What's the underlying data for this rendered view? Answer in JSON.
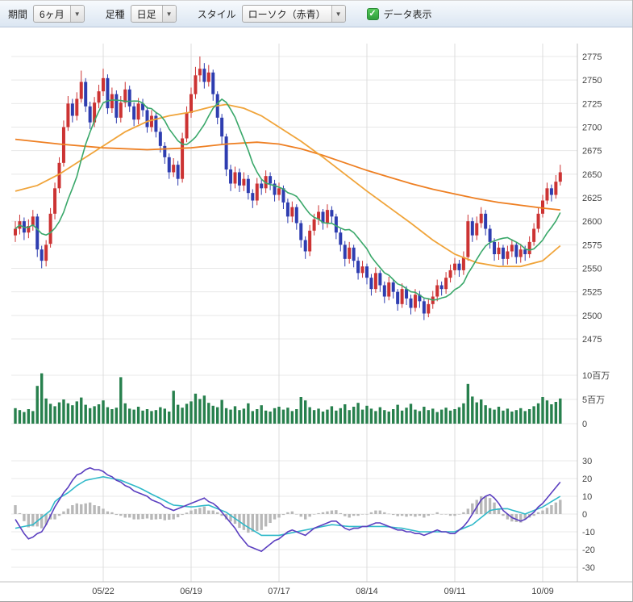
{
  "toolbar": {
    "period_label": "期間",
    "period_value": "6ヶ月",
    "bartype_label": "足種",
    "bartype_value": "日足",
    "style_label": "スタイル",
    "style_value": "ローソク（赤青）",
    "data_display_label": "データ表示",
    "data_display_checked": true
  },
  "icons": {
    "dropdown_arrow": "▼",
    "checkbox_check": "✓"
  },
  "colors": {
    "grid": "#e8e8e8",
    "grid_v": "#dcdcdc",
    "border": "#c0c0c0",
    "axis_text": "#444444",
    "up": "#cc3333",
    "down": "#2e3db0",
    "volume": "#27804d",
    "ma_short": "#3aa86a",
    "ma_mid": "#f0a43a",
    "ma_long": "#ee7f22",
    "osc_fast": "#5b3fc0",
    "osc_slow": "#2fb9c9",
    "hist": "#b8b8b8"
  },
  "chart_data": {
    "type": "candlestick",
    "panels": [
      "price",
      "volume",
      "oscillator"
    ],
    "num_points": 125,
    "x_tick_labels": [
      "05/22",
      "06/19",
      "07/17",
      "08/14",
      "09/11",
      "10/09"
    ],
    "x_tick_indices": [
      20,
      40,
      60,
      80,
      100,
      120
    ],
    "price_panel": {
      "axis_min": 2475,
      "axis_max": 2775,
      "axis_step": 25,
      "candles_ohlc": [
        [
          2585,
          2600,
          2578,
          2592
        ],
        [
          2592,
          2607,
          2586,
          2600
        ],
        [
          2600,
          2604,
          2580,
          2588
        ],
        [
          2588,
          2602,
          2582,
          2595
        ],
        [
          2595,
          2612,
          2590,
          2605
        ],
        [
          2605,
          2608,
          2562,
          2570
        ],
        [
          2570,
          2574,
          2550,
          2558
        ],
        [
          2558,
          2580,
          2552,
          2575
        ],
        [
          2576,
          2614,
          2572,
          2608
        ],
        [
          2608,
          2641,
          2602,
          2635
        ],
        [
          2635,
          2668,
          2630,
          2662
        ],
        [
          2662,
          2707,
          2658,
          2700
        ],
        [
          2700,
          2733,
          2696,
          2725
        ],
        [
          2725,
          2730,
          2705,
          2712
        ],
        [
          2712,
          2737,
          2707,
          2730
        ],
        [
          2730,
          2760,
          2726,
          2748
        ],
        [
          2748,
          2752,
          2716,
          2722
        ],
        [
          2722,
          2727,
          2698,
          2705
        ],
        [
          2705,
          2732,
          2700,
          2726
        ],
        [
          2726,
          2745,
          2720,
          2738
        ],
        [
          2738,
          2762,
          2733,
          2752
        ],
        [
          2752,
          2756,
          2714,
          2720
        ],
        [
          2720,
          2742,
          2715,
          2735
        ],
        [
          2735,
          2739,
          2704,
          2710
        ],
        [
          2710,
          2733,
          2705,
          2726
        ],
        [
          2726,
          2748,
          2721,
          2740
        ],
        [
          2740,
          2744,
          2716,
          2722
        ],
        [
          2722,
          2726,
          2701,
          2708
        ],
        [
          2708,
          2731,
          2703,
          2725
        ],
        [
          2725,
          2730,
          2711,
          2718
        ],
        [
          2718,
          2722,
          2694,
          2700
        ],
        [
          2700,
          2718,
          2695,
          2712
        ],
        [
          2712,
          2716,
          2689,
          2695
        ],
        [
          2695,
          2699,
          2673,
          2680
        ],
        [
          2680,
          2684,
          2661,
          2668
        ],
        [
          2668,
          2672,
          2645,
          2652
        ],
        [
          2652,
          2667,
          2647,
          2660
        ],
        [
          2660,
          2664,
          2638,
          2645
        ],
        [
          2645,
          2694,
          2641,
          2688
        ],
        [
          2688,
          2722,
          2684,
          2715
        ],
        [
          2715,
          2742,
          2710,
          2735
        ],
        [
          2735,
          2764,
          2730,
          2755
        ],
        [
          2755,
          2775,
          2748,
          2762
        ],
        [
          2762,
          2768,
          2741,
          2748
        ],
        [
          2748,
          2766,
          2743,
          2758
        ],
        [
          2758,
          2761,
          2728,
          2735
        ],
        [
          2735,
          2738,
          2703,
          2710
        ],
        [
          2710,
          2714,
          2682,
          2690
        ],
        [
          2690,
          2693,
          2648,
          2655
        ],
        [
          2655,
          2660,
          2632,
          2640
        ],
        [
          2640,
          2658,
          2635,
          2652
        ],
        [
          2652,
          2656,
          2631,
          2638
        ],
        [
          2638,
          2652,
          2632,
          2645
        ],
        [
          2645,
          2649,
          2623,
          2630
        ],
        [
          2630,
          2634,
          2614,
          2622
        ],
        [
          2622,
          2646,
          2617,
          2640
        ],
        [
          2640,
          2645,
          2628,
          2635
        ],
        [
          2635,
          2654,
          2630,
          2648
        ],
        [
          2648,
          2652,
          2633,
          2640
        ],
        [
          2640,
          2644,
          2621,
          2628
        ],
        [
          2628,
          2641,
          2622,
          2635
        ],
        [
          2635,
          2638,
          2613,
          2620
        ],
        [
          2620,
          2624,
          2598,
          2605
        ],
        [
          2605,
          2621,
          2599,
          2615
        ],
        [
          2615,
          2618,
          2591,
          2598
        ],
        [
          2598,
          2601,
          2572,
          2580
        ],
        [
          2580,
          2584,
          2560,
          2568
        ],
        [
          2568,
          2596,
          2563,
          2590
        ],
        [
          2590,
          2608,
          2585,
          2602
        ],
        [
          2602,
          2617,
          2596,
          2610
        ],
        [
          2610,
          2613,
          2591,
          2598
        ],
        [
          2598,
          2618,
          2593,
          2612
        ],
        [
          2612,
          2616,
          2598,
          2605
        ],
        [
          2605,
          2608,
          2581,
          2588
        ],
        [
          2588,
          2592,
          2568,
          2575
        ],
        [
          2575,
          2579,
          2552,
          2560
        ],
        [
          2560,
          2578,
          2555,
          2572
        ],
        [
          2572,
          2575,
          2551,
          2558
        ],
        [
          2558,
          2562,
          2538,
          2545
        ],
        [
          2545,
          2558,
          2540,
          2552
        ],
        [
          2552,
          2555,
          2533,
          2540
        ],
        [
          2540,
          2544,
          2521,
          2528
        ],
        [
          2528,
          2551,
          2524,
          2545
        ],
        [
          2545,
          2548,
          2525,
          2532
        ],
        [
          2532,
          2536,
          2513,
          2520
        ],
        [
          2520,
          2541,
          2516,
          2535
        ],
        [
          2535,
          2538,
          2518,
          2525
        ],
        [
          2525,
          2528,
          2505,
          2512
        ],
        [
          2512,
          2534,
          2508,
          2528
        ],
        [
          2528,
          2531,
          2511,
          2518
        ],
        [
          2518,
          2522,
          2501,
          2508
        ],
        [
          2508,
          2528,
          2504,
          2522
        ],
        [
          2522,
          2526,
          2508,
          2515
        ],
        [
          2515,
          2518,
          2495,
          2502
        ],
        [
          2502,
          2518,
          2498,
          2512
        ],
        [
          2512,
          2526,
          2507,
          2520
        ],
        [
          2520,
          2538,
          2515,
          2532
        ],
        [
          2532,
          2536,
          2521,
          2528
        ],
        [
          2528,
          2546,
          2523,
          2540
        ],
        [
          2540,
          2554,
          2535,
          2548
        ],
        [
          2548,
          2561,
          2543,
          2555
        ],
        [
          2555,
          2559,
          2541,
          2548
        ],
        [
          2548,
          2568,
          2543,
          2562
        ],
        [
          2562,
          2607,
          2558,
          2600
        ],
        [
          2600,
          2604,
          2578,
          2585
        ],
        [
          2585,
          2605,
          2580,
          2598
        ],
        [
          2598,
          2615,
          2593,
          2608
        ],
        [
          2608,
          2612,
          2585,
          2592
        ],
        [
          2592,
          2596,
          2571,
          2578
        ],
        [
          2578,
          2582,
          2558,
          2565
        ],
        [
          2565,
          2578,
          2559,
          2572
        ],
        [
          2572,
          2575,
          2553,
          2560
        ],
        [
          2560,
          2574,
          2554,
          2568
        ],
        [
          2568,
          2581,
          2562,
          2575
        ],
        [
          2575,
          2578,
          2555,
          2562
        ],
        [
          2562,
          2576,
          2556,
          2570
        ],
        [
          2570,
          2574,
          2558,
          2565
        ],
        [
          2565,
          2584,
          2561,
          2578
        ],
        [
          2578,
          2598,
          2574,
          2592
        ],
        [
          2592,
          2614,
          2588,
          2608
        ],
        [
          2608,
          2628,
          2604,
          2622
        ],
        [
          2622,
          2641,
          2618,
          2635
        ],
        [
          2635,
          2639,
          2621,
          2628
        ],
        [
          2628,
          2649,
          2624,
          2642
        ],
        [
          2642,
          2660,
          2638,
          2652
        ]
      ],
      "ma_short_sma_window": 10,
      "ma_mid_points": [
        [
          0,
          2632
        ],
        [
          5,
          2638
        ],
        [
          10,
          2650
        ],
        [
          15,
          2665
        ],
        [
          20,
          2680
        ],
        [
          25,
          2695
        ],
        [
          30,
          2706
        ],
        [
          35,
          2712
        ],
        [
          40,
          2716
        ],
        [
          45,
          2722
        ],
        [
          48,
          2724
        ],
        [
          52,
          2720
        ],
        [
          56,
          2712
        ],
        [
          60,
          2700
        ],
        [
          65,
          2685
        ],
        [
          70,
          2668
        ],
        [
          75,
          2650
        ],
        [
          80,
          2632
        ],
        [
          85,
          2615
        ],
        [
          90,
          2598
        ],
        [
          95,
          2580
        ],
        [
          100,
          2565
        ],
        [
          105,
          2556
        ],
        [
          110,
          2552
        ],
        [
          115,
          2552
        ],
        [
          120,
          2558
        ],
        [
          124,
          2574
        ]
      ],
      "ma_long_points": [
        [
          0,
          2687
        ],
        [
          10,
          2682
        ],
        [
          20,
          2678
        ],
        [
          30,
          2676
        ],
        [
          40,
          2678
        ],
        [
          48,
          2682
        ],
        [
          55,
          2684
        ],
        [
          60,
          2682
        ],
        [
          65,
          2677
        ],
        [
          70,
          2670
        ],
        [
          75,
          2662
        ],
        [
          80,
          2654
        ],
        [
          85,
          2647
        ],
        [
          90,
          2640
        ],
        [
          95,
          2634
        ],
        [
          100,
          2629
        ],
        [
          105,
          2624
        ],
        [
          110,
          2620
        ],
        [
          115,
          2617
        ],
        [
          120,
          2614
        ],
        [
          124,
          2612
        ]
      ]
    },
    "volume_panel": {
      "axis_tick_labels": [
        "10百万",
        "5百万",
        "0"
      ],
      "axis_tick_values": [
        10,
        5,
        0
      ],
      "unit": "百万",
      "values_millions": [
        3.2,
        2.8,
        2.4,
        3.0,
        2.6,
        7.8,
        10.4,
        5.2,
        4.1,
        3.6,
        4.4,
        5.0,
        4.2,
        3.8,
        4.6,
        5.4,
        3.9,
        3.2,
        3.6,
        4.0,
        4.8,
        3.4,
        3.0,
        3.3,
        9.6,
        4.2,
        3.1,
        2.9,
        3.5,
        2.7,
        3.0,
        2.6,
        2.8,
        3.4,
        3.1,
        2.5,
        6.8,
        3.9,
        3.3,
        4.1,
        4.6,
        6.2,
        5.1,
        5.8,
        4.3,
        3.7,
        3.4,
        4.9,
        3.2,
        2.9,
        3.6,
        2.8,
        3.1,
        4.2,
        2.6,
        3.0,
        3.8,
        2.7,
        2.5,
        3.2,
        3.5,
        2.9,
        3.3,
        2.6,
        3.0,
        5.5,
        4.8,
        3.4,
        2.8,
        3.1,
        2.5,
        2.9,
        3.6,
        2.7,
        3.2,
        4.0,
        2.8,
        3.5,
        4.3,
        2.9,
        3.7,
        3.1,
        2.6,
        3.4,
        2.8,
        2.5,
        3.0,
        3.9,
        2.7,
        3.3,
        4.1,
        2.9,
        2.6,
        3.5,
        2.8,
        3.1,
        2.4,
        2.9,
        3.3,
        2.7,
        3.0,
        3.4,
        4.2,
        8.2,
        5.6,
        4.4,
        5.0,
        3.8,
        3.2,
        2.9,
        3.5,
        2.7,
        3.1,
        2.5,
        2.8,
        3.2,
        2.6,
        3.0,
        3.6,
        4.2,
        5.5,
        4.8,
        4.0,
        4.5,
        5.2
      ]
    },
    "oscillator_panel": {
      "axis_ticks": [
        30,
        20,
        10,
        0,
        -10,
        -20,
        -30
      ],
      "histogram": "fast_minus_slow",
      "line_fast": [
        -3,
        -7,
        -11,
        -14,
        -13,
        -11,
        -10,
        -6,
        -1,
        4,
        8,
        12,
        15,
        19,
        22,
        23,
        25,
        26,
        25,
        25,
        24,
        22,
        21,
        19,
        18,
        16,
        15,
        13,
        12,
        11,
        10,
        8,
        7,
        6,
        4,
        3,
        2,
        3,
        4,
        5,
        6,
        7,
        8,
        9,
        7,
        6,
        4,
        1,
        -2,
        -5,
        -8,
        -12,
        -15,
        -18,
        -19,
        -20,
        -21,
        -19,
        -17,
        -15,
        -14,
        -12,
        -10,
        -9,
        -10,
        -11,
        -12,
        -10,
        -8,
        -7,
        -6,
        -5,
        -4,
        -4,
        -6,
        -8,
        -9,
        -8,
        -8,
        -7,
        -7,
        -6,
        -5,
        -5,
        -6,
        -7,
        -8,
        -9,
        -9,
        -10,
        -10,
        -11,
        -11,
        -12,
        -11,
        -10,
        -9,
        -10,
        -10,
        -11,
        -11,
        -9,
        -7,
        -4,
        0,
        4,
        8,
        10,
        11,
        9,
        6,
        2,
        0,
        -2,
        -3,
        -4,
        -3,
        -1,
        1,
        4,
        6,
        9,
        12,
        15,
        18
      ],
      "line_slow": [
        -8,
        -7.5,
        -7,
        -6.5,
        -6,
        -4,
        -2,
        0,
        2,
        7,
        9,
        10.5,
        12,
        14,
        16,
        17.5,
        19,
        19.5,
        20,
        20.5,
        21,
        20.5,
        20,
        19.5,
        19,
        18,
        17,
        16,
        15,
        13.8,
        12.5,
        11.2,
        10,
        8.8,
        7.5,
        6.2,
        5,
        4.8,
        4.5,
        4.2,
        4,
        4.2,
        4.5,
        4.8,
        5,
        4,
        3,
        2,
        1,
        -0.8,
        -2.5,
        -4.2,
        -6,
        -7.5,
        -9,
        -10.5,
        -12,
        -12,
        -12,
        -12,
        -12,
        -11.5,
        -11,
        -10.5,
        -10,
        -9.5,
        -9,
        -8.5,
        -8,
        -7.5,
        -7,
        -6.5,
        -6,
        -6.2,
        -6.5,
        -6.8,
        -7,
        -7,
        -7,
        -7,
        -7,
        -7,
        -7,
        -7,
        -7,
        -7.2,
        -7.5,
        -7.8,
        -8,
        -8.5,
        -9,
        -9.5,
        -10,
        -10,
        -10,
        -10,
        -10,
        -10,
        -10,
        -10,
        -10,
        -9,
        -8,
        -7,
        -6,
        -4,
        -2,
        0,
        2,
        2.5,
        2.8,
        3,
        3,
        2.2,
        1.5,
        0.8,
        0,
        1,
        2,
        3,
        4,
        5.5,
        7,
        8.5,
        10
      ]
    }
  }
}
